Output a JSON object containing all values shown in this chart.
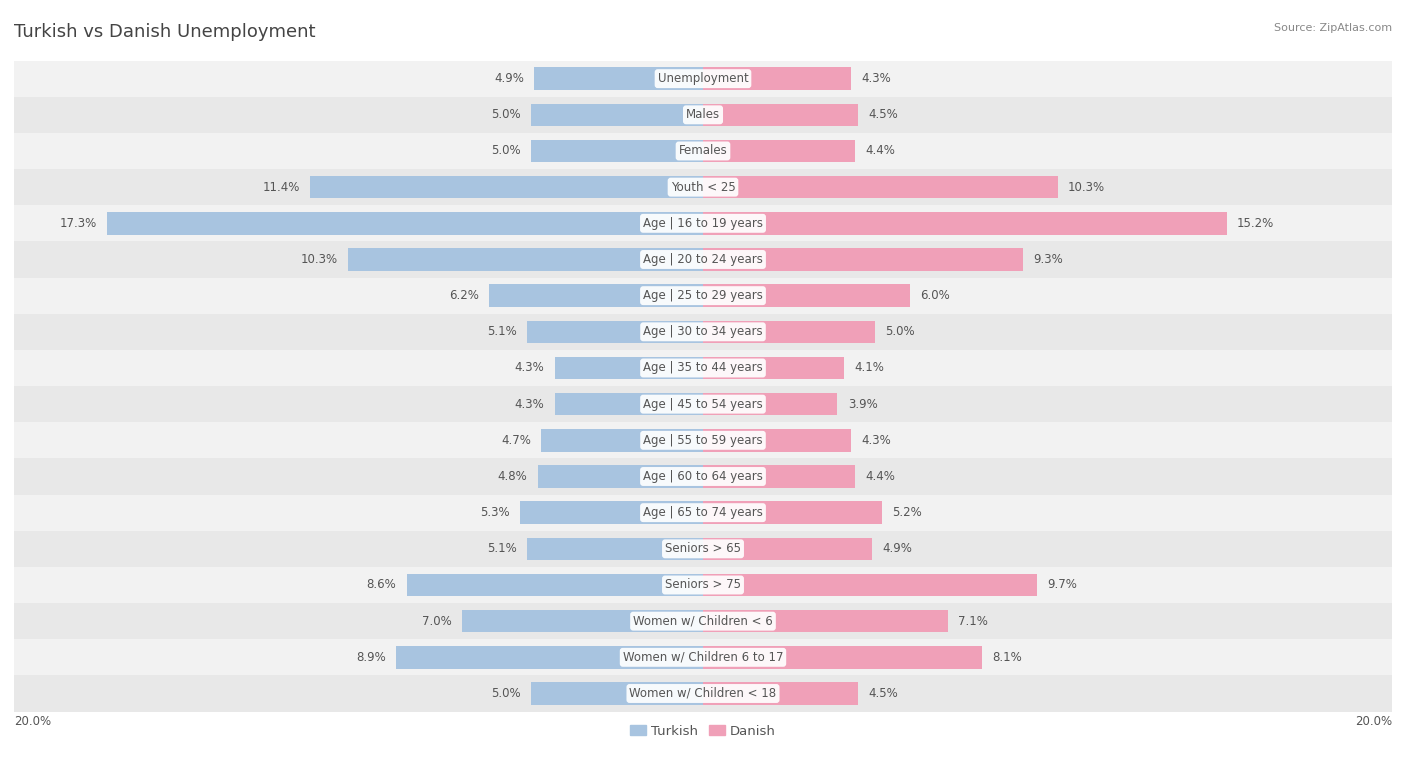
{
  "title": "Turkish vs Danish Unemployment",
  "source": "Source: ZipAtlas.com",
  "categories": [
    "Unemployment",
    "Males",
    "Females",
    "Youth < 25",
    "Age | 16 to 19 years",
    "Age | 20 to 24 years",
    "Age | 25 to 29 years",
    "Age | 30 to 34 years",
    "Age | 35 to 44 years",
    "Age | 45 to 54 years",
    "Age | 55 to 59 years",
    "Age | 60 to 64 years",
    "Age | 65 to 74 years",
    "Seniors > 65",
    "Seniors > 75",
    "Women w/ Children < 6",
    "Women w/ Children 6 to 17",
    "Women w/ Children < 18"
  ],
  "turkish_values": [
    4.9,
    5.0,
    5.0,
    11.4,
    17.3,
    10.3,
    6.2,
    5.1,
    4.3,
    4.3,
    4.7,
    4.8,
    5.3,
    5.1,
    8.6,
    7.0,
    8.9,
    5.0
  ],
  "danish_values": [
    4.3,
    4.5,
    4.4,
    10.3,
    15.2,
    9.3,
    6.0,
    5.0,
    4.1,
    3.9,
    4.3,
    4.4,
    5.2,
    4.9,
    9.7,
    7.1,
    8.1,
    4.5
  ],
  "turkish_color": "#a8c4e0",
  "danish_color": "#f0a0b8",
  "max_value": 20.0,
  "background_color": "#ffffff",
  "row_bg_even": "#f2f2f2",
  "row_bg_odd": "#e8e8e8",
  "title_fontsize": 13,
  "label_fontsize": 8.5,
  "value_fontsize": 8.5,
  "legend_fontsize": 9.5,
  "axis_label_fontsize": 8.5,
  "title_color": "#444444",
  "text_color": "#555555",
  "source_color": "#888888"
}
